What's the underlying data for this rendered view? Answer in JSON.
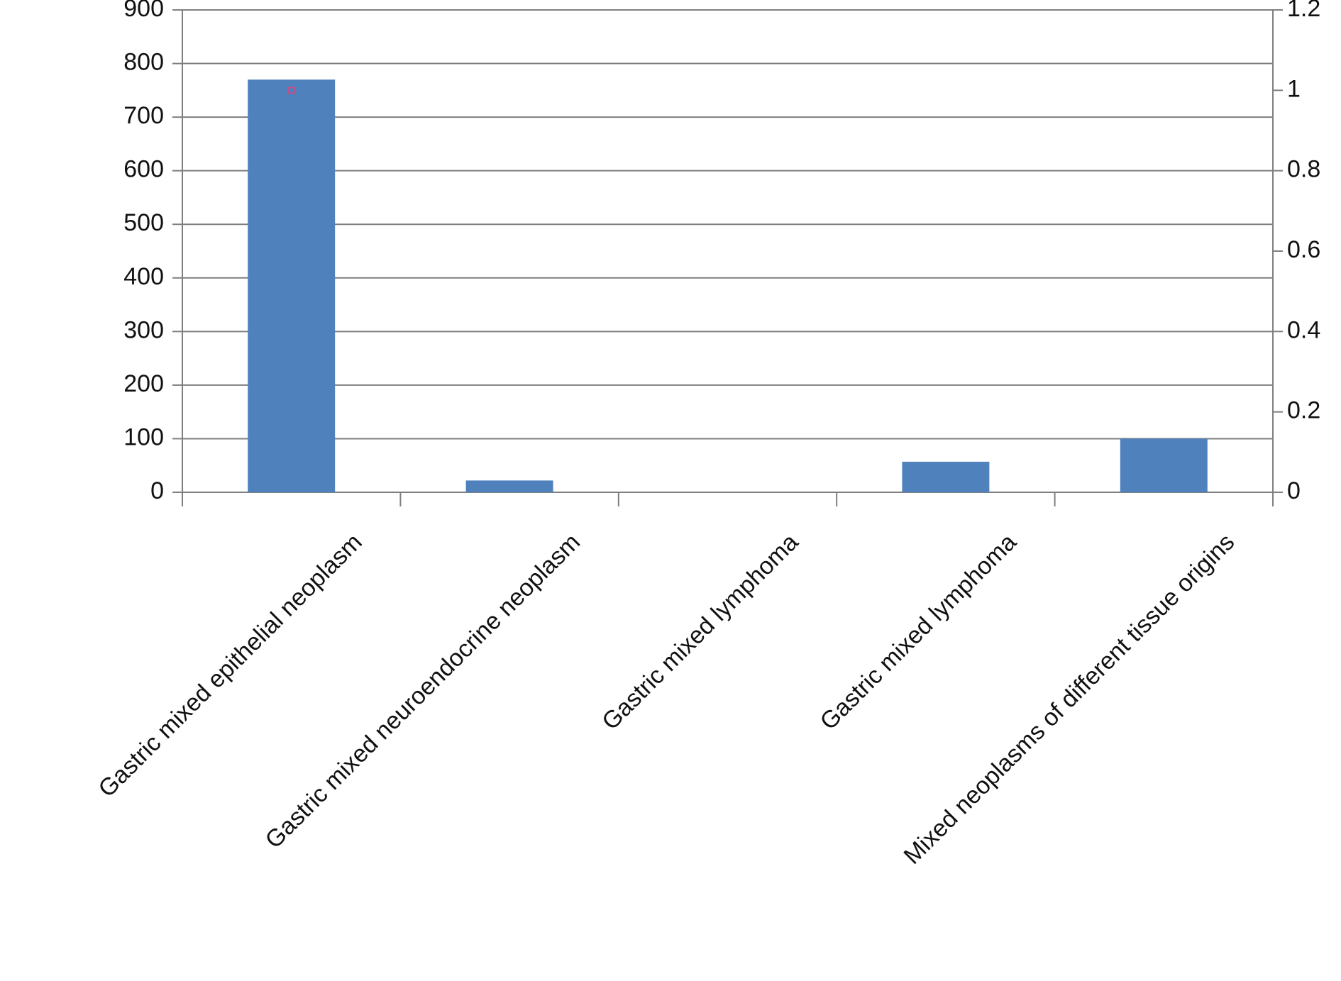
{
  "chart_data": {
    "type": "bar",
    "categories": [
      "Gastric mixed epithelial neoplasm",
      "Gastric mixed neuroendocrine neoplasm",
      "Gastric mixed lymphoma",
      "Gastric mixed lymphoma",
      "Mixed neoplasms of different tissue origins"
    ],
    "series": [
      {
        "color": "#4f81bd",
        "values": [
          770,
          22,
          0,
          57,
          100
        ]
      },
      {
        "color": "#c0508a",
        "values": [
          1,
          null,
          null,
          null,
          null
        ],
        "axis": "y2"
      }
    ],
    "ylim": [
      0,
      900
    ],
    "yticks": [
      0,
      100,
      200,
      300,
      400,
      500,
      600,
      700,
      800,
      900
    ],
    "y2lim": [
      0,
      1.2
    ],
    "y2ticks": [
      0,
      0.2,
      0.4,
      0.6,
      0.8,
      1,
      1.2
    ],
    "grid": true
  }
}
